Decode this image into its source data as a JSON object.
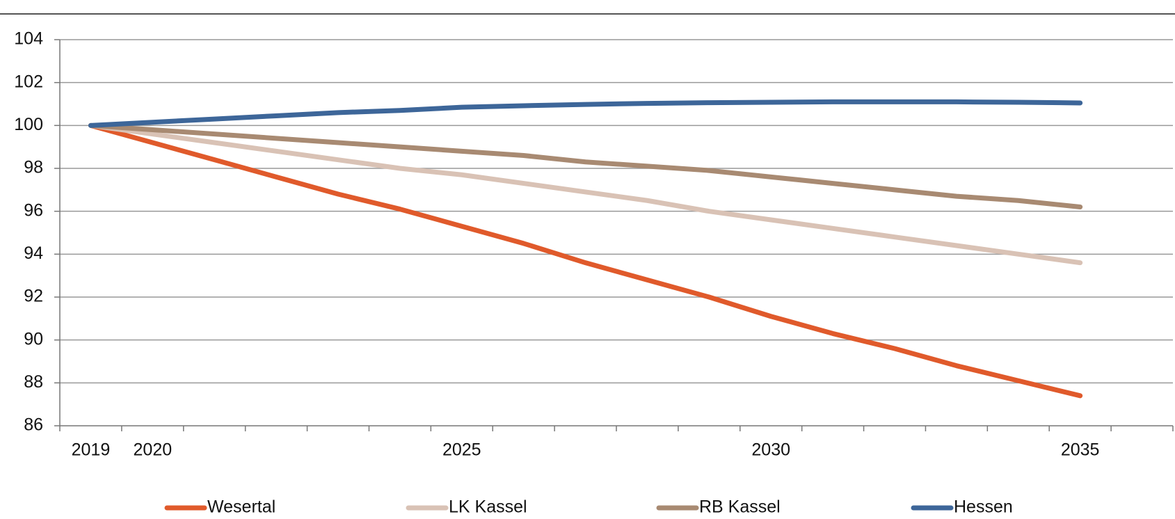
{
  "chart_data": {
    "type": "line",
    "categories": [
      "2019",
      "2020",
      null,
      null,
      null,
      null,
      "2025",
      null,
      null,
      null,
      null,
      "2030",
      null,
      null,
      null,
      null,
      "2035",
      null
    ],
    "series": [
      {
        "name": "Wesertal",
        "color": "#e05a2b",
        "values": [
          100,
          99.2,
          98.4,
          97.6,
          96.8,
          96.1,
          95.3,
          94.5,
          93.6,
          92.8,
          92.0,
          91.1,
          90.3,
          89.6,
          88.8,
          88.1,
          87.4,
          null
        ]
      },
      {
        "name": "LK Kassel",
        "color": "#d9c2b5",
        "values": [
          100,
          99.6,
          99.2,
          98.8,
          98.4,
          98.0,
          97.7,
          97.3,
          96.9,
          96.5,
          96.0,
          95.6,
          95.2,
          94.8,
          94.4,
          94.0,
          93.6,
          null
        ]
      },
      {
        "name": "RB Kassel",
        "color": "#a88a72",
        "values": [
          100,
          99.8,
          99.6,
          99.4,
          99.2,
          99.0,
          98.8,
          98.6,
          98.3,
          98.1,
          97.9,
          97.6,
          97.3,
          97.0,
          96.7,
          96.5,
          96.2,
          null
        ]
      },
      {
        "name": "Hessen",
        "color": "#3d6699",
        "values": [
          100,
          100.15,
          100.3,
          100.45,
          100.6,
          100.7,
          100.85,
          100.92,
          100.98,
          101.03,
          101.06,
          101.08,
          101.1,
          101.1,
          101.1,
          101.08,
          101.05,
          null
        ]
      }
    ],
    "ylim": [
      86,
      104
    ],
    "yticks": [
      86,
      88,
      90,
      92,
      94,
      96,
      98,
      100,
      102,
      104
    ],
    "grid": true,
    "legend": "bottom"
  }
}
